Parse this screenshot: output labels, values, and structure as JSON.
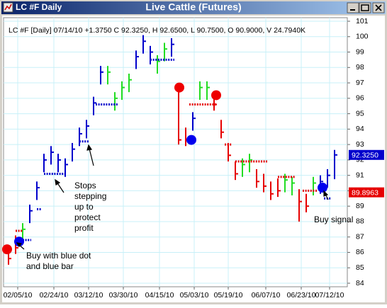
{
  "window_title": "LC #F Daily",
  "chart_data": {
    "type": "ohlc",
    "title": "Live Cattle (Futures)",
    "subtitle": "LC #F [Daily] 07/14/10 +1.3750 C 92.3250, H 92.6500, L 90.7500, O 90.9000, V 24.7940K",
    "x": [
      0,
      1,
      2,
      3,
      4,
      5,
      6,
      7,
      8,
      9,
      10,
      11,
      12,
      13,
      14,
      15,
      16,
      17,
      18,
      19,
      20,
      21,
      22,
      23,
      24,
      25,
      26,
      27,
      28,
      29,
      30,
      31,
      32,
      33,
      34,
      35,
      36,
      37,
      38,
      39,
      40,
      41,
      42,
      43,
      44,
      45,
      46
    ],
    "high": [
      86.4,
      87.1,
      87.9,
      89.1,
      90.6,
      92.4,
      92.9,
      92.4,
      92.1,
      93.1,
      94.1,
      94.6,
      96.1,
      98.1,
      98.1,
      96.4,
      97.1,
      97.6,
      99.1,
      100.1,
      99.4,
      98.8,
      99.6,
      99.9,
      96.7,
      94.1,
      95.1,
      97.1,
      97.1,
      96.4,
      94.6,
      93.1,
      91.9,
      92.1,
      92.4,
      91.4,
      91.1,
      90.6,
      90.8,
      91.1,
      90.9,
      90.1,
      89.8,
      90.9,
      91.0,
      91.4,
      92.65
    ],
    "low": [
      85.2,
      85.9,
      86.7,
      87.9,
      89.4,
      91.2,
      91.7,
      91.2,
      90.9,
      91.9,
      92.9,
      93.4,
      94.9,
      96.9,
      96.9,
      95.2,
      95.9,
      96.4,
      97.9,
      98.9,
      98.2,
      97.6,
      98.4,
      98.7,
      93.0,
      92.9,
      93.9,
      95.9,
      95.9,
      95.2,
      93.4,
      91.9,
      90.7,
      90.9,
      91.2,
      90.2,
      89.9,
      89.4,
      89.6,
      89.9,
      89.7,
      88.0,
      88.6,
      89.7,
      89.8,
      90.2,
      90.75
    ],
    "close": [
      85.6,
      86.3,
      87.5,
      88.7,
      90.2,
      92.0,
      92.5,
      92.0,
      91.7,
      92.7,
      93.7,
      94.2,
      95.7,
      97.7,
      97.7,
      96.0,
      96.7,
      97.2,
      98.7,
      99.7,
      99.0,
      98.4,
      99.2,
      99.5,
      93.3,
      93.3,
      94.7,
      96.7,
      96.7,
      95.6,
      93.8,
      92.3,
      91.1,
      91.7,
      92.0,
      90.6,
      90.3,
      89.8,
      90.0,
      90.7,
      90.5,
      89.3,
      89.0,
      90.5,
      90.6,
      91.0,
      92.325
    ],
    "bar_colors": [
      "#e60000",
      "#e60000",
      "#22dd22",
      "#0000cc",
      "#0000cc",
      "#0000cc",
      "#0000cc",
      "#0000cc",
      "#0000cc",
      "#0000cc",
      "#0000cc",
      "#0000cc",
      "#0000cc",
      "#0000cc",
      "#22dd22",
      "#22dd22",
      "#22dd22",
      "#22dd22",
      "#0000cc",
      "#0000cc",
      "#0000cc",
      "#22dd22",
      "#22dd22",
      "#0000cc",
      "#e60000",
      "#e60000",
      "#0000cc",
      "#22dd22",
      "#22dd22",
      "#e60000",
      "#e60000",
      "#e60000",
      "#e60000",
      "#22dd22",
      "#22dd22",
      "#e60000",
      "#e60000",
      "#e60000",
      "#e60000",
      "#22dd22",
      "#22dd22",
      "#e60000",
      "#e60000",
      "#22dd22",
      "#0000cc",
      "#0000cc",
      "#0000cc"
    ],
    "stops": [
      {
        "from": 1,
        "to": 2,
        "value": 87.4,
        "color": "#e60000"
      },
      {
        "from": 2,
        "to": 3.2,
        "value": 86.8,
        "color": "#0000cc"
      },
      {
        "from": 4,
        "to": 4.6,
        "value": 88.8,
        "color": "#0000cc"
      },
      {
        "from": 5,
        "to": 8.2,
        "value": 91.1,
        "color": "#0000cc"
      },
      {
        "from": 10,
        "to": 11.3,
        "value": 93.2,
        "color": "#0000cc"
      },
      {
        "from": 12.3,
        "to": 15.5,
        "value": 95.6,
        "color": "#0000cc"
      },
      {
        "from": 20,
        "to": 23.4,
        "value": 98.5,
        "color": "#0000cc"
      },
      {
        "from": 25.5,
        "to": 29.3,
        "value": 95.6,
        "color": "#e60000"
      },
      {
        "from": 30.5,
        "to": 31.5,
        "value": 93.0,
        "color": "#e60000"
      },
      {
        "from": 32,
        "to": 36.5,
        "value": 91.9,
        "color": "#e60000"
      },
      {
        "from": 38,
        "to": 40.5,
        "value": 90.9,
        "color": "#e60000"
      },
      {
        "from": 41.5,
        "to": 43.5,
        "value": 90.0,
        "color": "#e60000"
      },
      {
        "from": 44.5,
        "to": 45.5,
        "value": 89.5,
        "color": "#0000cc"
      }
    ],
    "signals": [
      {
        "x": -0.2,
        "value": 86.2,
        "color": "#ee0000"
      },
      {
        "x": 1.5,
        "value": 86.7,
        "color": "#0000ee"
      },
      {
        "x": 24.1,
        "value": 96.7,
        "color": "#ee0000"
      },
      {
        "x": 25.8,
        "value": 93.3,
        "color": "#0000ee"
      },
      {
        "x": 29.3,
        "value": 96.2,
        "color": "#ee0000"
      },
      {
        "x": 44.3,
        "value": 90.2,
        "color": "#0000ee"
      }
    ],
    "price_labels": [
      {
        "value": 92.325,
        "label": "92.3250",
        "color": "#0000cc"
      },
      {
        "value": 89.8963,
        "label": "89.8963",
        "color": "#e60000"
      }
    ],
    "annotations": [
      {
        "lines": [
          "Buy with blue dot",
          "and blue bar"
        ]
      },
      {
        "lines": [
          "Stops",
          "stepping",
          "up to",
          "protect",
          "profit"
        ]
      },
      {
        "lines": [
          "Buy signal"
        ]
      }
    ],
    "xlim": [
      -0.7,
      47.8
    ],
    "xticks": [
      {
        "value": 1.3,
        "label": "02/05/10"
      },
      {
        "value": 6.4,
        "label": "02/24/10"
      },
      {
        "value": 11.3,
        "label": "03/12/10"
      },
      {
        "value": 16.2,
        "label": "03/30/10"
      },
      {
        "value": 21.3,
        "label": "04/15/10"
      },
      {
        "value": 26.2,
        "label": "05/03/10"
      },
      {
        "value": 31,
        "label": "05/19/10"
      },
      {
        "value": 36.3,
        "label": "06/07/10"
      },
      {
        "value": 41.3,
        "label": "06/23/10"
      },
      {
        "value": 45.3,
        "label": "07/12/10"
      }
    ],
    "ylim": [
      83.77,
      101.23
    ],
    "yticks": [
      84,
      85,
      86,
      87,
      88,
      89,
      90,
      91,
      92,
      93,
      94,
      95,
      96,
      97,
      98,
      99,
      100,
      101
    ],
    "grid": true
  }
}
